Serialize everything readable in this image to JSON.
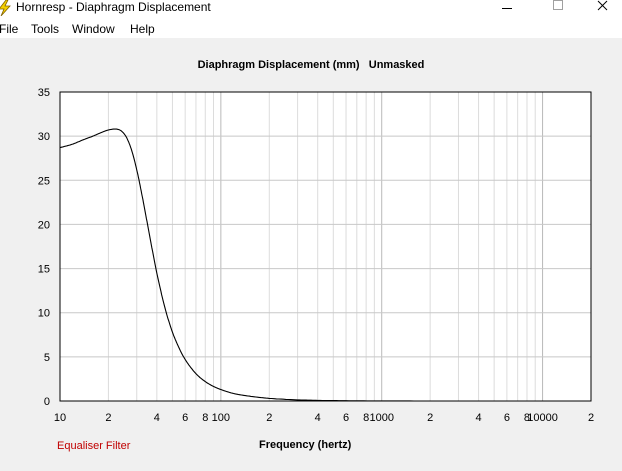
{
  "window": {
    "title": "Hornresp - Diaphragm Displacement",
    "icon": "lightning-icon",
    "controls": [
      "minimize-icon",
      "maximize-icon",
      "close-icon"
    ]
  },
  "menu": [
    {
      "key": "file",
      "label": "File"
    },
    {
      "key": "tools",
      "label": "Tools"
    },
    {
      "key": "window",
      "label": "Window"
    },
    {
      "key": "help",
      "label": "Help"
    }
  ],
  "chart_title": "Diaphragm Displacement (mm)   Unmasked",
  "status_left": "Equaliser Filter",
  "colors": {
    "curve": "#000000",
    "grid": "#c8c8c8",
    "background": "#ffffff",
    "status": "#c00000"
  },
  "chart_data": {
    "type": "line",
    "title": "Diaphragm Displacement (mm)   Unmasked",
    "xlabel": "Frequency (hertz)",
    "ylabel": "",
    "x_scale": "log",
    "xlim": [
      10,
      20000
    ],
    "ylim": [
      0,
      35
    ],
    "grid": true,
    "yticks": [
      0,
      5,
      10,
      15,
      20,
      25,
      30,
      35
    ],
    "ytick_labels": [
      "0",
      "5",
      "10",
      "15",
      "20",
      "25",
      "30",
      "35"
    ],
    "xticks": [
      10,
      20,
      40,
      60,
      80,
      100,
      200,
      400,
      600,
      800,
      1000,
      2000,
      4000,
      6000,
      8000,
      10000,
      20000
    ],
    "xtick_labels": [
      "10",
      "2",
      "4",
      "6",
      "8",
      "100",
      "2",
      "4",
      "6",
      "8",
      "1000",
      "2",
      "4",
      "6",
      "8",
      "10000",
      "2"
    ],
    "series": [
      {
        "x": [
          10,
          12,
          14,
          16,
          18,
          20,
          22,
          24,
          26,
          28,
          30,
          33,
          36,
          40,
          45,
          50,
          55,
          60,
          70,
          80,
          90,
          100,
          120,
          150,
          200,
          300,
          400,
          600,
          1000,
          2000,
          5000,
          10000,
          20000
        ],
        "y": [
          28.7,
          29.1,
          29.6,
          30.0,
          30.4,
          30.7,
          30.8,
          30.6,
          29.8,
          28.3,
          26.2,
          22.5,
          18.8,
          14.5,
          10.5,
          7.8,
          6.0,
          4.7,
          3.1,
          2.2,
          1.65,
          1.3,
          0.85,
          0.55,
          0.3,
          0.13,
          0.07,
          0.03,
          0.01,
          0.005,
          0.002,
          0.001,
          0.0
        ]
      }
    ]
  }
}
